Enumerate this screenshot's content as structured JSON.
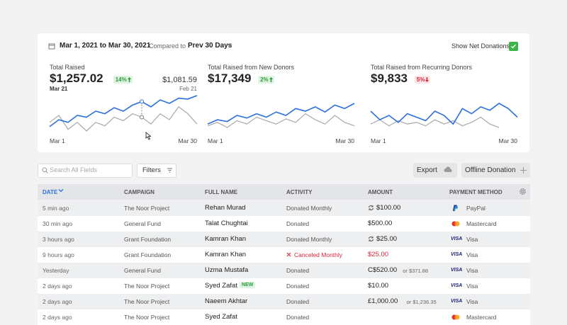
{
  "header": {
    "date_range": "Mar 1, 2021 to Mar 30, 2021",
    "compared_label": "Compared to",
    "compared_value": "Prev 30 Days",
    "toggle_label": "Show Net Donations",
    "toggle_checked": true
  },
  "metrics": [
    {
      "label": "Total Raised",
      "value": "$1,257.02",
      "change": "14%",
      "trend": "up",
      "date": "Mar 21",
      "compare_value": "$1,081.59",
      "compare_date": "Feb 21",
      "x_start": "Mar 1",
      "x_end": "Mar 30",
      "current": [
        3.4,
        5,
        4.4,
        6,
        5.6,
        7,
        6.4,
        7.8,
        7,
        8.4,
        9.2,
        8,
        9.6,
        8.8,
        10,
        9.8,
        10.6
      ],
      "previous": [
        4.4,
        6,
        2.8,
        4.4,
        2.4,
        4.4,
        3.6,
        5.6,
        4.8,
        6.4,
        5.6,
        4,
        6.4,
        5,
        8,
        6.4,
        4
      ]
    },
    {
      "label": "Total Raised from New Donors",
      "value": "$17,349",
      "change": "2%",
      "trend": "up",
      "x_start": "Mar 1",
      "x_end": "Mar 30",
      "current": [
        4,
        5,
        4.6,
        6,
        5.4,
        6.4,
        5.6,
        6.8,
        6,
        7.6,
        7,
        8,
        6.8,
        8.4,
        7.6,
        8.8
      ],
      "previous": [
        3.6,
        4.4,
        3.2,
        4.8,
        4,
        5.6,
        4.8,
        4,
        5.2,
        4.4,
        6.4,
        5,
        4,
        6,
        4.4,
        3.6
      ]
    },
    {
      "label": "Total Raised from Recurring Donors",
      "value": "$9,833",
      "change": "5%",
      "trend": "down",
      "x_start": "Mar 1",
      "x_end": "Mar 30",
      "current": [
        7,
        5,
        6,
        4.4,
        6.4,
        5.6,
        4.8,
        7,
        6,
        4,
        7.6,
        6.4,
        8,
        7.2,
        8.8,
        7.6,
        5.6
      ],
      "previous": [
        4,
        5,
        3.6,
        4.8,
        4,
        4.4,
        3.6,
        5,
        4,
        4.8,
        3.6,
        4.4,
        5.6,
        4,
        3.2
      ]
    }
  ],
  "toolbar": {
    "search_placeholder": "Search All Fields",
    "filters": "Filters",
    "export": "Export",
    "add": "Offline Donation"
  },
  "table": {
    "columns": [
      "DATE",
      "CAMPAIGN",
      "FULL NAME",
      "ACTIVITY",
      "AMOUNT",
      "PAYMENT METHOD"
    ],
    "rows": [
      {
        "date": "5 min ago",
        "campaign": "The Noor Project",
        "name": "Rehan Murad",
        "activity": "Donated Monthly",
        "recurring": true,
        "amount": "$100.00",
        "method": "PayPal",
        "card": "paypal"
      },
      {
        "date": "30 min ago",
        "campaign": "General Fund",
        "name": "Talat Chughtai",
        "activity": "Donated",
        "amount": "$500.00",
        "method": "Mastercard",
        "card": "mastercard"
      },
      {
        "date": "3 hours ago",
        "campaign": "Grant Foundation",
        "name": "Kamran Khan",
        "activity": "Donated Monthly",
        "recurring": true,
        "amount": "$25.00",
        "method": "Visa",
        "card": "visa",
        "card_logo": "VISA"
      },
      {
        "date": "9 hours ago",
        "campaign": "Grant Foundation",
        "name": "Kamran Khan",
        "activity": "Canceled Monthly",
        "canceled": true,
        "amount": "$25.00",
        "method": "Visa",
        "card": "visa",
        "card_logo": "VISA"
      },
      {
        "date": "Yesterday",
        "campaign": "General Fund",
        "name": "Uzma Mustafa",
        "activity": "Donated",
        "amount": "C$520.00",
        "amount_alt": "or $371.88",
        "method": "Visa",
        "card": "visa",
        "card_logo": "VISA"
      },
      {
        "date": "2 days ago",
        "campaign": "The Noor Project",
        "name": "Syed Zafat",
        "badge": "NEW",
        "activity": "Donated",
        "amount": "$10.00",
        "method": "Visa",
        "card": "visa",
        "card_logo": "VISA"
      },
      {
        "date": "2 days ago",
        "campaign": "The Noor Project",
        "name": "Naeem Akhtar",
        "activity": "Donated",
        "amount": "£1,000.00",
        "amount_alt": "or $1,236.35",
        "method": "Visa",
        "card": "visa",
        "card_logo": "VISA"
      },
      {
        "date": "2 days ago",
        "campaign": "The Noor Project",
        "name": "Syed Zafat",
        "activity": "Donated",
        "method": "Mastercard",
        "card": "mastercard"
      }
    ]
  }
}
